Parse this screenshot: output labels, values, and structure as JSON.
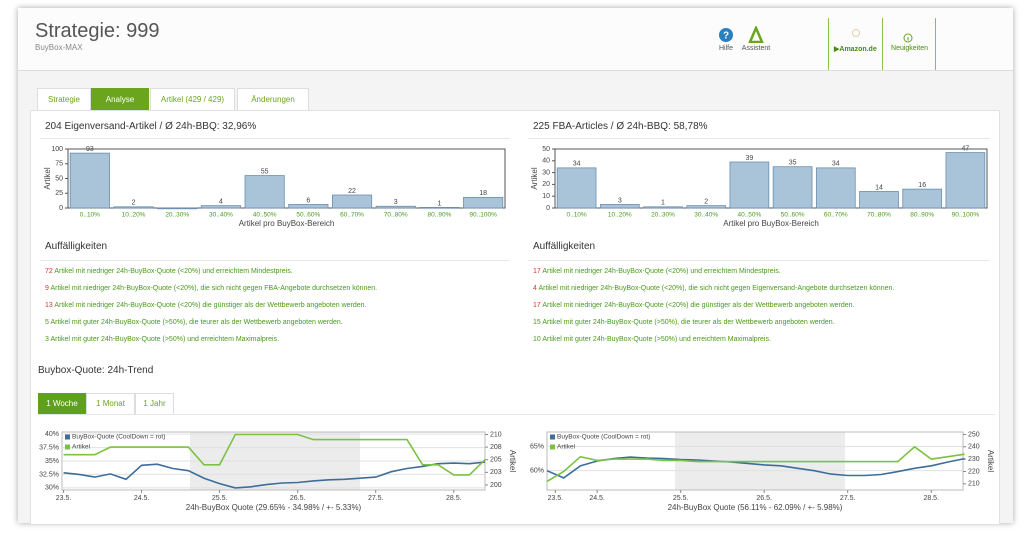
{
  "header": {
    "title": "Strategie: 999",
    "subtitle": "BuyBox-MAX",
    "links": [
      "Hilfe",
      "Assistent",
      "Amazon.de",
      "Neuigkeiten"
    ]
  },
  "tabs": [
    "Strategie",
    "Analyse",
    "Artikel (429 / 429)",
    "Änderungen"
  ],
  "panels": [
    {
      "heading": "Auffälligkeiten",
      "findings": [
        {
          "count": 72,
          "color": "#d9372b",
          "text": "Artikel mit niedriger 24h-BuyBox-Quote (<20%) und erreichtem Mindestpreis."
        },
        {
          "count": 9,
          "color": "#d9372b",
          "text": "Artikel mit niedriger 24h-BuyBox-Quote (<20%), die sich nicht gegen FBA-Angebote durchsetzen können."
        },
        {
          "count": 13,
          "color": "#d9372b",
          "text": "Artikel mit niedriger 24h-BuyBox-Quote (<20%) die günstiger als der Wettbewerb angeboten werden."
        },
        {
          "count": 5,
          "color": "#4a9a1a",
          "text": "Artikel mit guter 24h-BuyBox-Quote (>50%), die teurer als der Wettbewerb angeboten werden."
        },
        {
          "count": 3,
          "color": "#4a9a1a",
          "text": "Artikel mit guter 24h-BuyBox-Quote (>50%) und erreichtem Maximalpreis."
        }
      ]
    },
    {
      "heading": "Auffälligkeiten",
      "findings": [
        {
          "count": 17,
          "color": "#d9372b",
          "text": "Artikel mit niedriger 24h-BuyBox-Quote (<20%) und erreichtem Mindestpreis."
        },
        {
          "count": 4,
          "color": "#d9372b",
          "text": "Artikel mit niedriger 24h-BuyBox-Quote (<20%), die sich nicht gegen Eigenversand-Angebote durchsetzen können."
        },
        {
          "count": 17,
          "color": "#d9372b",
          "text": "Artikel mit niedriger 24h-BuyBox-Quote (<20%) die günstiger als der Wettbewerb angeboten werden."
        },
        {
          "count": 15,
          "color": "#4a9a1a",
          "text": "Artikel mit guter 24h-BuyBox-Quote (>50%), die teurer als der Wettbewerb angeboten werden."
        },
        {
          "count": 10,
          "color": "#4a9a1a",
          "text": "Artikel mit guter 24h-BuyBox-Quote (>50%) und erreichtem Maximalpreis."
        }
      ]
    }
  ],
  "trend": {
    "title": "Buybox-Quote: 24h-Trend",
    "periods": [
      "1 Woche",
      "1 Monat",
      "1 Jahr"
    ]
  },
  "chart_data": [
    {
      "type": "bar",
      "title": "204 Eigenversand-Artikel / Ø 24h-BBQ: 32,96%",
      "categories": [
        "0..10%",
        "10..20%",
        "20..30%",
        "30..40%",
        "40..50%",
        "50..60%",
        "60..70%",
        "70..80%",
        "80..90%",
        "90..100%"
      ],
      "values": [
        93,
        2,
        0,
        4,
        55,
        6,
        22,
        3,
        1,
        18
      ],
      "color": "#a9c4d9",
      "ylim": [
        0,
        100
      ],
      "yticks": [
        0,
        25,
        50,
        75,
        100
      ],
      "ylabel": "Artikel",
      "xlabel": "Artikel pro BuyBox-Bereich"
    },
    {
      "type": "bar",
      "title": "225 FBA-Articles / Ø 24h-BBQ: 58,78%",
      "categories": [
        "0..10%",
        "10..20%",
        "20..30%",
        "30..40%",
        "40..50%",
        "50..60%",
        "60..70%",
        "70..80%",
        "80..90%",
        "90..100%"
      ],
      "values": [
        34,
        3,
        1,
        2,
        39,
        35,
        34,
        14,
        16,
        47
      ],
      "color": "#a9c4d9",
      "ylim": [
        0,
        50
      ],
      "yticks": [
        0,
        10,
        20,
        30,
        40,
        50
      ],
      "ylabel": "Artikel",
      "xlabel": "Artikel pro BuyBox-Bereich"
    },
    {
      "type": "line",
      "xlabel": "24h-BuyBox Quote (29.65% - 34.98% / +- 5.33%)",
      "y2label": "Artikel",
      "x": [
        23.0,
        23.2,
        23.4,
        23.6,
        23.8,
        24.0,
        24.2,
        24.4,
        24.6,
        24.8,
        25.0,
        25.2,
        25.4,
        25.6,
        25.8,
        26.0,
        26.2,
        26.4,
        26.6,
        26.8,
        27.0,
        27.2,
        27.4,
        27.6,
        27.8,
        28.0,
        28.2,
        28.4
      ],
      "xlim": [
        22.98,
        28.4
      ],
      "xticks": [
        {
          "value": 23,
          "label": "23.5."
        },
        {
          "value": 24,
          "label": "24.5."
        },
        {
          "value": 25,
          "label": "25.5."
        },
        {
          "value": 26,
          "label": "26.5."
        },
        {
          "value": 27,
          "label": "27.5."
        },
        {
          "value": 28,
          "label": "28.5."
        }
      ],
      "ylim": [
        29.6,
        40.4
      ],
      "yticks": [
        {
          "value": 30,
          "label": "30%"
        },
        {
          "value": 32.5,
          "label": "32.5%"
        },
        {
          "value": 35,
          "label": "35%"
        },
        {
          "value": 37.5,
          "label": "37.5%"
        },
        {
          "value": 40,
          "label": "40%"
        }
      ],
      "y2lim": [
        199,
        210.5
      ],
      "y2ticks": [
        200,
        {
          "value": 202.5,
          "label": "203"
        },
        205,
        {
          "value": 207.5,
          "label": "208"
        },
        210
      ],
      "series": [
        {
          "name": "BuyBox-Quote (CoolDown = rot)",
          "color": "#3d6d9b",
          "values": [
            32.8,
            32.5,
            32.0,
            32.6,
            31.6,
            34.2,
            34.4,
            33.6,
            33.2,
            31.8,
            30.8,
            30.0,
            30.2,
            30.6,
            30.9,
            31.0,
            31.3,
            31.5,
            31.6,
            31.8,
            32.0,
            33.0,
            33.6,
            34.0,
            34.5,
            34.6,
            34.5,
            34.8
          ]
        },
        {
          "name": "Artikel",
          "color": "#7cc242",
          "axis": "y2",
          "values": [
            206,
            206,
            206,
            207.5,
            207.5,
            207.5,
            207.5,
            207.5,
            207.5,
            204,
            204,
            210,
            210,
            210,
            210,
            210,
            209,
            209,
            209,
            209,
            209,
            209,
            209,
            204,
            204,
            202,
            202,
            205
          ]
        }
      ]
    },
    {
      "type": "line",
      "xlabel": "24h-BuyBox Quote (56.11% - 62.09% / +- 5.98%)",
      "y2label": "Artikel",
      "x": [
        23.4,
        23.6,
        23.8,
        24.0,
        24.2,
        24.4,
        24.6,
        24.8,
        25.0,
        25.2,
        25.4,
        25.6,
        25.8,
        26.0,
        26.2,
        26.4,
        26.6,
        26.8,
        27.0,
        27.2,
        27.4,
        27.6,
        27.8,
        28.0,
        28.2,
        28.4
      ],
      "xlim": [
        23.4,
        28.38
      ],
      "xticks": [
        {
          "value": 23.5,
          "label": "23.5."
        },
        {
          "value": 24,
          "label": "24.5."
        },
        {
          "value": 25,
          "label": "25.5."
        },
        {
          "value": 26,
          "label": "26.5."
        },
        {
          "value": 27,
          "label": "27.5."
        },
        {
          "value": 28,
          "label": "28.5."
        }
      ],
      "ylim": [
        56,
        68
      ],
      "yticks": [
        {
          "value": 60,
          "label": "60%"
        },
        {
          "value": 65,
          "label": "65%"
        }
      ],
      "y2lim": [
        205,
        252
      ],
      "y2ticks": [
        210,
        220,
        230,
        240,
        250
      ],
      "series": [
        {
          "name": "BuyBox-Quote (CoolDown = rot)",
          "color": "#3d6d9b",
          "values": [
            60,
            58.5,
            61,
            62,
            62.5,
            62.8,
            62.6,
            62.5,
            62.3,
            62.2,
            62.0,
            61.8,
            61.5,
            61.2,
            61.0,
            60.5,
            60.0,
            59.3,
            59.0,
            59.0,
            59.2,
            59.8,
            60.5,
            61.0,
            61.8,
            62.5
          ]
        },
        {
          "name": "Artikel",
          "color": "#7cc242",
          "axis": "y2",
          "values": [
            212,
            220,
            232,
            229,
            230,
            230,
            230,
            229,
            229,
            228,
            228,
            228,
            228,
            228,
            228,
            228,
            228,
            228,
            228,
            228,
            228,
            228,
            240,
            230,
            232,
            234
          ]
        }
      ]
    }
  ]
}
